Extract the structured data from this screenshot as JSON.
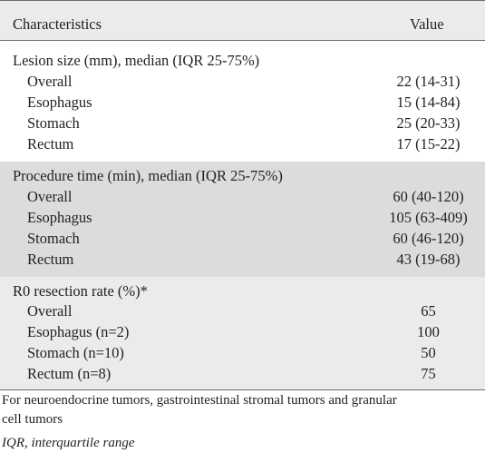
{
  "header": {
    "characteristics": "Characteristics",
    "value": "Value"
  },
  "sections": [
    {
      "title": "Lesion size (mm), median (IQR 25-75%)",
      "rows": [
        {
          "label": "Overall",
          "value": "22 (14-31)"
        },
        {
          "label": "Esophagus",
          "value": "15 (14-84)"
        },
        {
          "label": "Stomach",
          "value": "25 (20-33)"
        },
        {
          "label": "Rectum",
          "value": "17 (15-22)"
        }
      ]
    },
    {
      "title": "Procedure time (min), median (IQR 25-75%)",
      "rows": [
        {
          "label": "Overall",
          "value": "60 (40-120)"
        },
        {
          "label": "Esophagus",
          "value": "105 (63-409)"
        },
        {
          "label": "Stomach",
          "value": "60 (46-120)"
        },
        {
          "label": "Rectum",
          "value": "43 (19-68)"
        }
      ]
    },
    {
      "title": "R0 resection rate (%)*",
      "rows": [
        {
          "label": "Overall",
          "value": "65"
        },
        {
          "label": "Esophagus (n=2)",
          "value": "100"
        },
        {
          "label": "Stomach (n=10)",
          "value": "50"
        },
        {
          "label": "Rectum (n=8)",
          "value": "75"
        }
      ]
    }
  ],
  "footnotes": {
    "note1_line1": "For neuroendocrine tumors, gastrointestinal stromal tumors and granular",
    "note1_line2": "cell tumors",
    "note2": "IQR, interquartile range"
  },
  "colors": {
    "header_bg": "#ebebeb",
    "section_shaded_bg": "#dcdcdc",
    "section_light_bg": "#ebebeb",
    "rule": "#6b6b6b",
    "text": "#231f20"
  }
}
